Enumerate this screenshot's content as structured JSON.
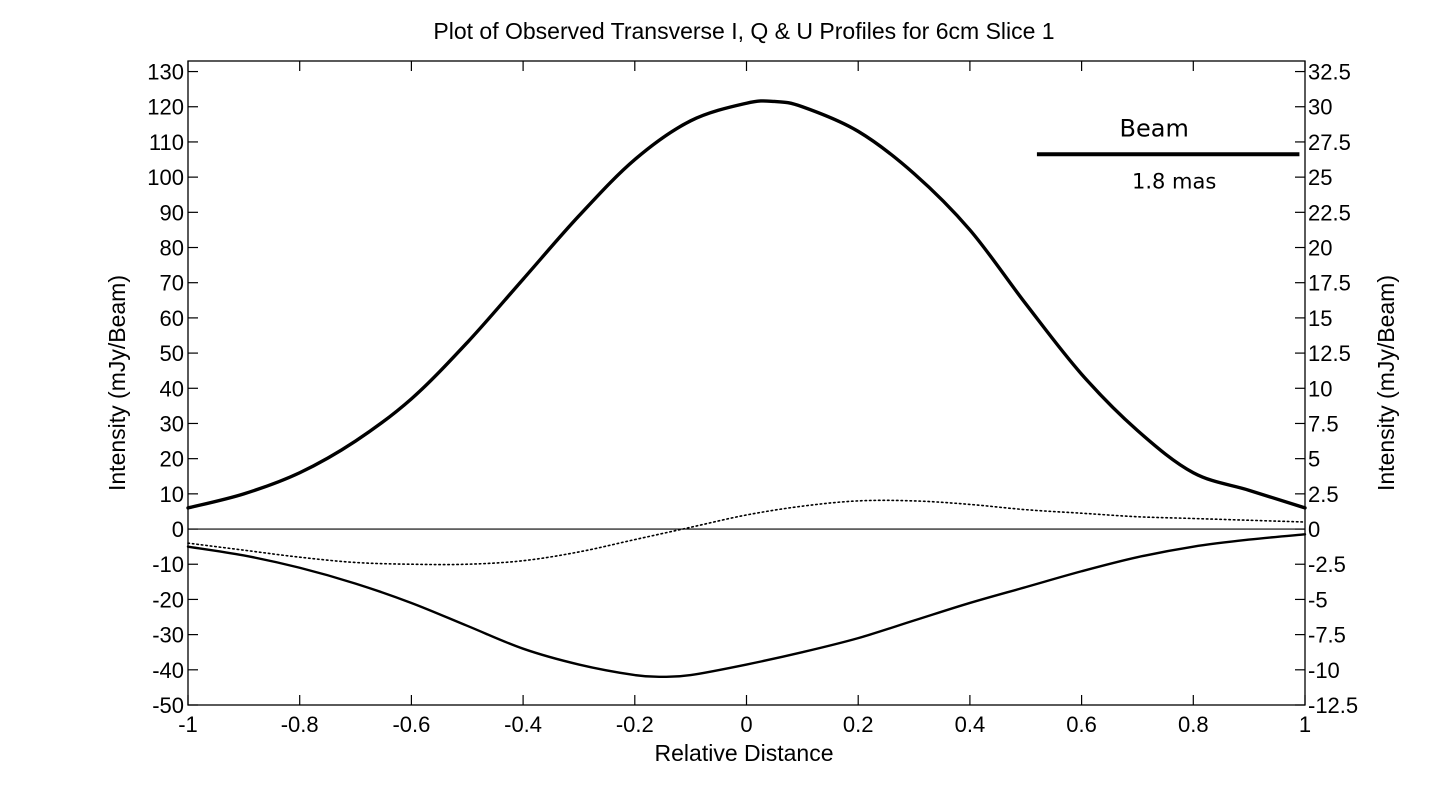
{
  "chart_data": {
    "type": "line",
    "title": "Plot of Observed Transverse I, Q & U Profiles for 6cm Slice 1",
    "xlabel": "Relative Distance",
    "ylabel": "Intensity (mJy/Beam)",
    "ylabel_right": "Intensity (mJy/Beam)",
    "xlim": [
      -1,
      1
    ],
    "ylim": [
      -50,
      133
    ],
    "ylim_right": [
      -12.5,
      33.25
    ],
    "x_ticks": [
      "-1",
      "-0.8",
      "-0.6",
      "-0.4",
      "-0.2",
      "0",
      "0.2",
      "0.4",
      "0.6",
      "0.8",
      "1"
    ],
    "y_ticks": [
      "-50",
      "-40",
      "-30",
      "-20",
      "-10",
      "0",
      "10",
      "20",
      "30",
      "40",
      "50",
      "60",
      "70",
      "80",
      "90",
      "100",
      "110",
      "120",
      "130"
    ],
    "y_ticks_right": [
      "-12.5",
      "-10",
      "-7.5",
      "-5",
      "-2.5",
      "0",
      "2.5",
      "5",
      "7.5",
      "10",
      "12.5",
      "15",
      "17.5",
      "20",
      "22.5",
      "25",
      "27.5",
      "30",
      "32.5"
    ],
    "grid": false,
    "annotations": [
      {
        "text": "Beam",
        "role": "beam-label"
      },
      {
        "text": "1.8 mas",
        "role": "beam-size",
        "x_range": [
          0.52,
          0.99
        ],
        "y": 106.5
      }
    ],
    "series": [
      {
        "style": "solid-thick",
        "axis": "left",
        "x": [
          -1.0,
          -0.9,
          -0.8,
          -0.7,
          -0.6,
          -0.5,
          -0.4,
          -0.3,
          -0.2,
          -0.1,
          0.0,
          0.05,
          0.1,
          0.2,
          0.3,
          0.4,
          0.5,
          0.6,
          0.7,
          0.8,
          0.9,
          1.0
        ],
        "y": [
          6,
          10,
          16,
          25,
          37,
          53,
          71,
          89,
          105,
          116,
          121,
          121.5,
          120,
          113,
          101,
          85,
          64,
          44,
          28,
          16,
          11,
          6
        ]
      },
      {
        "style": "solid",
        "axis": "left",
        "x": [
          -1.0,
          -0.9,
          -0.8,
          -0.7,
          -0.6,
          -0.5,
          -0.4,
          -0.3,
          -0.2,
          -0.15,
          -0.1,
          0.0,
          0.1,
          0.2,
          0.3,
          0.4,
          0.5,
          0.6,
          0.7,
          0.8,
          0.9,
          1.0
        ],
        "y": [
          -5,
          -7.5,
          -11,
          -15.5,
          -21,
          -27.5,
          -34,
          -38.5,
          -41.5,
          -42,
          -41.5,
          -38.5,
          -35,
          -31,
          -26,
          -21,
          -16.5,
          -12,
          -8,
          -5,
          -3,
          -1.5
        ]
      },
      {
        "style": "dotted",
        "axis": "left",
        "x": [
          -1.0,
          -0.9,
          -0.8,
          -0.7,
          -0.6,
          -0.5,
          -0.4,
          -0.3,
          -0.2,
          -0.1,
          0.0,
          0.1,
          0.2,
          0.3,
          0.4,
          0.5,
          0.6,
          0.7,
          0.8,
          0.9,
          1.0
        ],
        "y": [
          -4,
          -6,
          -8,
          -9.5,
          -10,
          -10,
          -9,
          -6.5,
          -3,
          0.5,
          4,
          6.5,
          8,
          8,
          7,
          5.5,
          4.5,
          3.5,
          3,
          2.5,
          2
        ]
      }
    ]
  }
}
